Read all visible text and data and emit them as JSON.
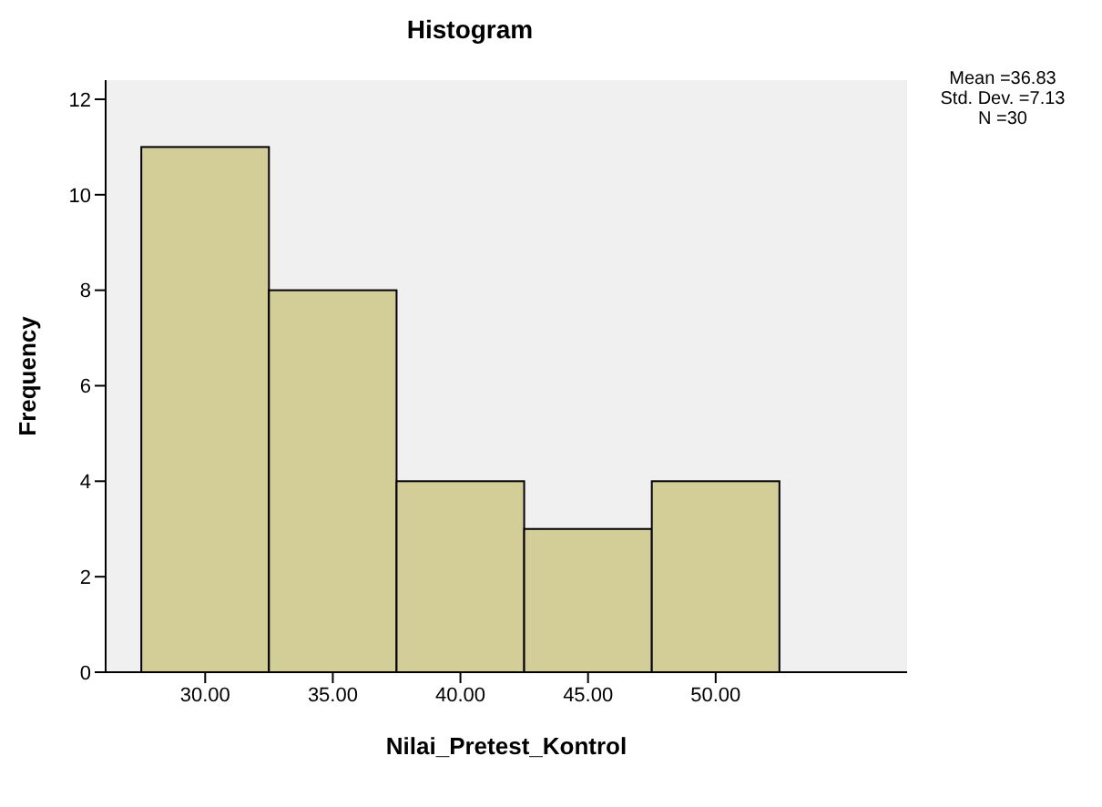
{
  "chart_data": {
    "type": "histogram",
    "title": "Histogram",
    "xlabel": "Nilai_Pretest_Kontrol",
    "ylabel": "Frequency",
    "bins": [
      27.5,
      32.5,
      37.5,
      42.5,
      47.5,
      52.5
    ],
    "values": [
      11,
      8,
      4,
      3,
      4
    ],
    "color": "#d3ce97",
    "xlim": [
      26.1,
      57.5
    ],
    "xticks": [
      {
        "value": 30,
        "label": "30.00"
      },
      {
        "value": 35,
        "label": "35.00"
      },
      {
        "value": 40,
        "label": "40.00"
      },
      {
        "value": 45,
        "label": "45.00"
      },
      {
        "value": 50,
        "label": "50.00"
      }
    ],
    "ylim": [
      0,
      12.4
    ],
    "yticks": [
      0,
      2,
      4,
      6,
      8,
      10,
      12
    ],
    "grid": false,
    "annotations": [
      "Mean =36.83",
      "Std. Dev. =7.13",
      "N =30"
    ]
  }
}
